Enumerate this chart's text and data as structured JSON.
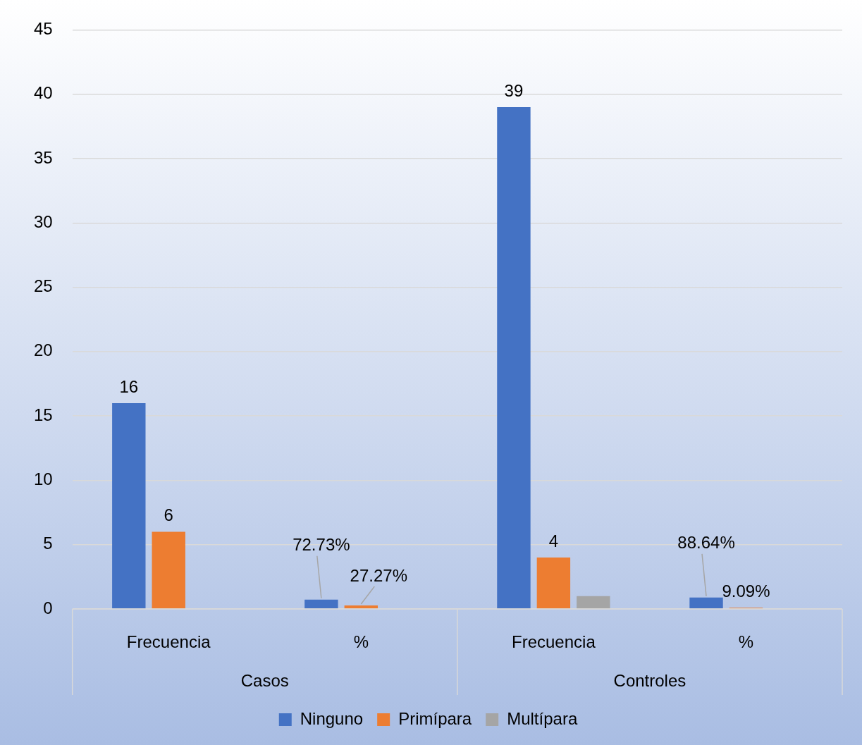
{
  "chart_data": {
    "type": "bar",
    "categories": [
      "Frecuencia",
      "%",
      "Frecuencia",
      "%"
    ],
    "annotations": [
      "Casos",
      "Controles"
    ],
    "series": [
      {
        "name": "Ninguno",
        "color": "#4472c4",
        "values": [
          16,
          0.7273,
          39,
          0.8864
        ],
        "value_labels": [
          "16",
          "72.73%",
          "39",
          "88.64%"
        ]
      },
      {
        "name": "Primípara",
        "color": "#ed7d31",
        "values": [
          6,
          0.2727,
          4,
          0.0909
        ],
        "value_labels": [
          "6",
          "27.27%",
          "4",
          "9.09%"
        ]
      },
      {
        "name": "Multípara",
        "color": "#a5a5a5",
        "values": [
          0,
          0,
          1,
          0
        ],
        "value_labels": [
          null,
          null,
          null,
          null
        ]
      }
    ],
    "ylim": [
      0,
      45
    ],
    "yticks": [
      0,
      5,
      10,
      15,
      20,
      25,
      30,
      35,
      40,
      45
    ],
    "grid": "y",
    "legend": "bottom"
  }
}
